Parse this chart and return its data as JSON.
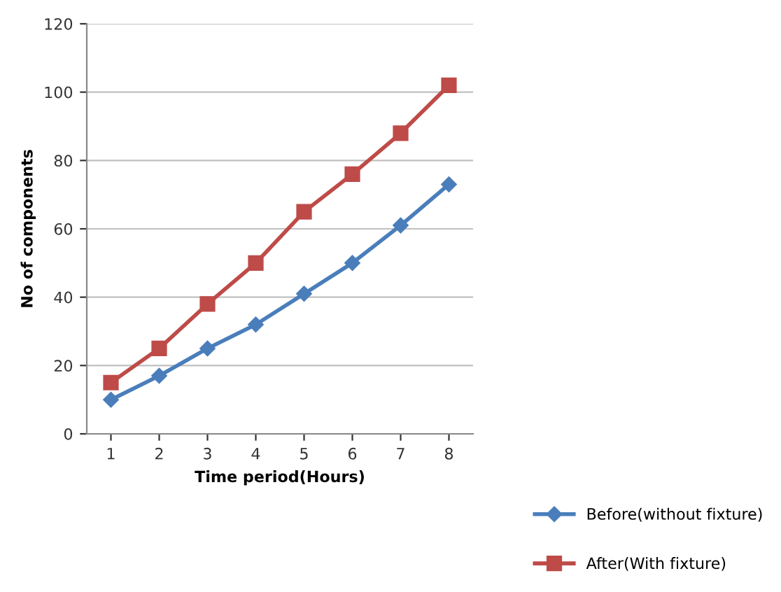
{
  "chart_data": {
    "type": "line",
    "xlabel": "Time period(Hours)",
    "ylabel": "No of components",
    "categories": [
      "1",
      "2",
      "3",
      "4",
      "5",
      "6",
      "7",
      "8"
    ],
    "ylim": [
      0,
      120
    ],
    "yticks": [
      0,
      20,
      40,
      60,
      80,
      100,
      120
    ],
    "grid": "y",
    "legend": "bottom right",
    "line_style": "solid",
    "series": [
      {
        "name": "Before(without fixture)",
        "color": "#4a7ebb",
        "marker": "diamond",
        "values": [
          10,
          17,
          25,
          32,
          41,
          50,
          61,
          73
        ]
      },
      {
        "name": "After(With fixture)",
        "color": "#be4b48",
        "marker": "square",
        "values": [
          15,
          25,
          38,
          50,
          65,
          76,
          88,
          102
        ]
      }
    ]
  }
}
